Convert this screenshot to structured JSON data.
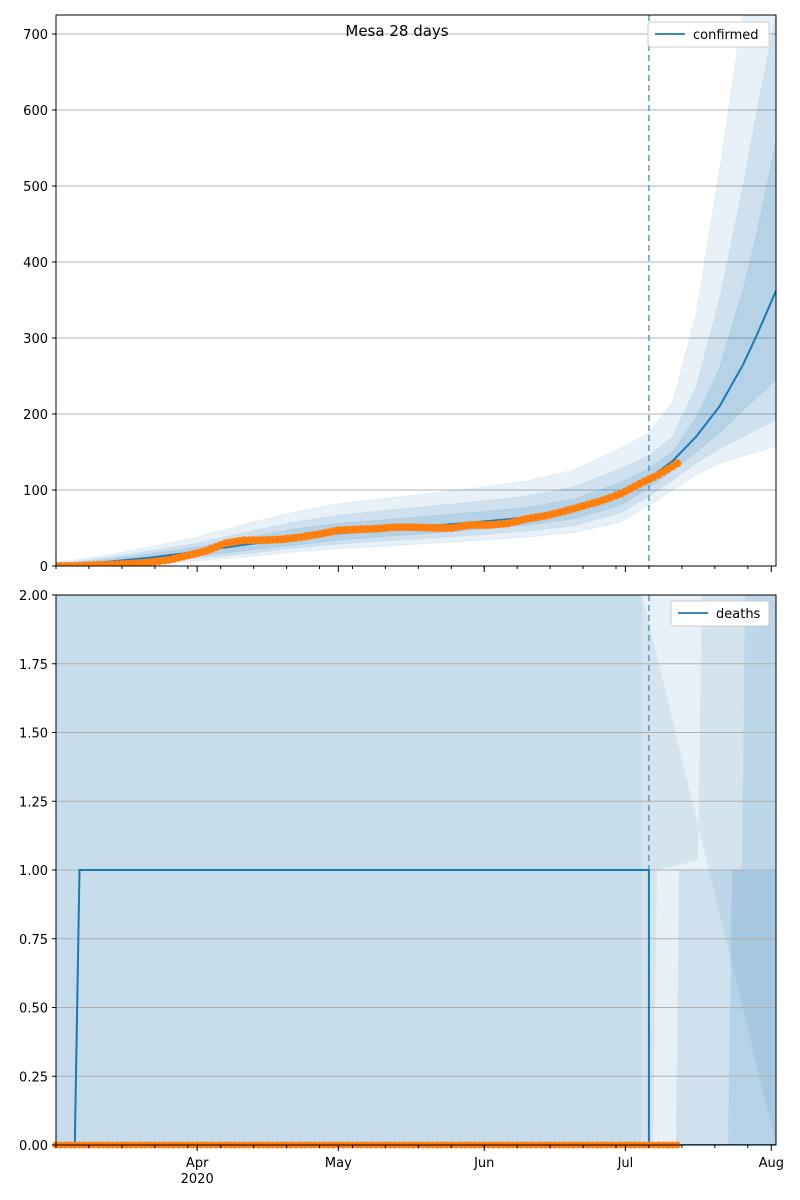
{
  "colors": {
    "line": "#1f77b4",
    "band": "#1f77b4",
    "observed": "#ff7f0e",
    "grid": "#b0b0b0",
    "vline": "#5b9bc8"
  },
  "chart_data": [
    {
      "type": "line",
      "title": "Mesa 28 days",
      "legend": {
        "position": "top-right",
        "label": "confirmed"
      },
      "xlim": [
        "2020-03-02",
        "2020-08-02"
      ],
      "ylim": [
        0,
        725
      ],
      "yticks": [
        0,
        100,
        200,
        300,
        400,
        500,
        600,
        700
      ],
      "ytick_labels": [
        "0",
        "100",
        "200",
        "300",
        "400",
        "500",
        "600",
        "700"
      ],
      "grid": "y",
      "forecast_start": "2020-07-06",
      "model": {
        "x": [
          "2020-03-02",
          "2020-03-12",
          "2020-03-22",
          "2020-04-01",
          "2020-04-11",
          "2020-04-21",
          "2020-05-01",
          "2020-05-11",
          "2020-05-21",
          "2020-05-31",
          "2020-06-10",
          "2020-06-20",
          "2020-06-30",
          "2020-07-06",
          "2020-07-11",
          "2020-07-16",
          "2020-07-21",
          "2020-07-26",
          "2020-07-29",
          "2020-08-02"
        ],
        "y": [
          0,
          5,
          11,
          19,
          28,
          36,
          43,
          48,
          53,
          58,
          64,
          74,
          95,
          115,
          138,
          170,
          210,
          265,
          305,
          362
        ]
      },
      "bands": [
        {
          "lower": [
            0,
            0,
            2,
            7,
            12,
            18,
            23,
            26,
            30,
            34,
            38,
            44,
            58,
            80,
            100,
            120,
            135,
            145,
            150,
            158
          ],
          "upper": [
            5,
            13,
            25,
            38,
            55,
            70,
            82,
            89,
            96,
            103,
            112,
            126,
            155,
            175,
            215,
            330,
            520,
            730,
            725,
            725
          ]
        },
        {
          "lower": [
            0,
            1,
            4,
            10,
            16,
            23,
            29,
            33,
            37,
            41,
            46,
            53,
            70,
            92,
            113,
            135,
            155,
            170,
            180,
            192
          ],
          "upper": [
            3,
            10,
            20,
            30,
            44,
            57,
            67,
            73,
            79,
            85,
            92,
            104,
            128,
            145,
            170,
            235,
            350,
            500,
            600,
            725
          ]
        },
        {
          "lower": [
            0,
            2,
            6,
            13,
            20,
            27,
            34,
            39,
            43,
            48,
            54,
            62,
            80,
            103,
            125,
            150,
            175,
            205,
            222,
            245
          ],
          "upper": [
            2,
            8,
            16,
            25,
            37,
            48,
            56,
            61,
            66,
            71,
            77,
            88,
            110,
            128,
            150,
            195,
            260,
            365,
            440,
            560
          ]
        }
      ],
      "observed": {
        "x": [
          "2020-03-02",
          "2020-03-06",
          "2020-03-10",
          "2020-03-14",
          "2020-03-18",
          "2020-03-22",
          "2020-03-26",
          "2020-03-30",
          "2020-04-03",
          "2020-04-07",
          "2020-04-11",
          "2020-04-15",
          "2020-04-19",
          "2020-04-23",
          "2020-04-27",
          "2020-05-01",
          "2020-05-05",
          "2020-05-09",
          "2020-05-13",
          "2020-05-17",
          "2020-05-21",
          "2020-05-25",
          "2020-05-29",
          "2020-06-02",
          "2020-06-06",
          "2020-06-10",
          "2020-06-14",
          "2020-06-18",
          "2020-06-22",
          "2020-06-26",
          "2020-06-30",
          "2020-07-04",
          "2020-07-08",
          "2020-07-12"
        ],
        "y": [
          0,
          0,
          1,
          2,
          3,
          5,
          8,
          14,
          20,
          30,
          34,
          34,
          35,
          38,
          42,
          47,
          48,
          49,
          51,
          51,
          50,
          50,
          54,
          54,
          56,
          62,
          66,
          72,
          79,
          86,
          95,
          108,
          120,
          135
        ]
      }
    },
    {
      "type": "line",
      "legend": {
        "position": "top-right",
        "label": "deaths"
      },
      "xlim": [
        "2020-03-02",
        "2020-08-02"
      ],
      "ylim": [
        0,
        2
      ],
      "yticks": [
        0,
        0.25,
        0.5,
        0.75,
        1.0,
        1.25,
        1.5,
        1.75,
        2.0
      ],
      "ytick_labels": [
        "0.00",
        "0.25",
        "0.50",
        "0.75",
        "1.00",
        "1.25",
        "1.50",
        "1.75",
        "2.00"
      ],
      "grid": "y",
      "forecast_start": "2020-07-06",
      "model": {
        "x": [
          "2020-03-02",
          "2020-03-06",
          "2020-03-07",
          "2020-07-06",
          "2020-07-06",
          "2020-08-02"
        ],
        "y": [
          0,
          0,
          1,
          1,
          0,
          0
        ]
      },
      "observed": {
        "x_start": "2020-03-02",
        "x_end": "2020-07-12",
        "y": 0
      },
      "xticks": [
        "2020-04-01",
        "2020-05-01",
        "2020-06-01",
        "2020-07-01",
        "2020-08-01"
      ],
      "xtick_labels": [
        "Apr",
        "May",
        "Jun",
        "Jul",
        "Aug"
      ],
      "xtick_year": "2020"
    }
  ]
}
